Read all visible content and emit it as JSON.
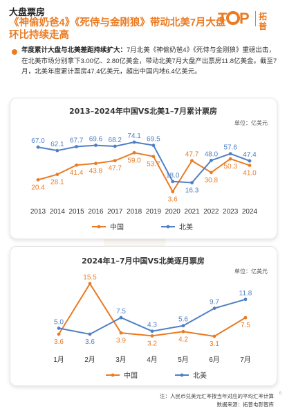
{
  "header": {
    "section_label": "大盘票房",
    "headline": "《神偷奶爸4》《死侍与金刚狼》带动北美7月大盘环比持续走高",
    "logo_text": "T♦P",
    "logo_cn": "拓普"
  },
  "summary": {
    "lead": "年度累计大盘与北美差距持续扩大：",
    "text": "7月北美《神偷奶爸4》《死侍与金刚狼》重磅出击，在北美市场分别拿下3.00亿、2.80亿美金，带动北美7月大盘产出票房11.8亿美金。截至7月，北美年度累计票房47.4亿美元，超出中国内地6.4亿美元。"
  },
  "colors": {
    "china": "#ea7b23",
    "na": "#4f7fc4",
    "accent": "#ea7b23"
  },
  "chart_data": [
    {
      "type": "line",
      "title": "2013–2024年中国VS北美1–7月累计票房",
      "unit": "单位：亿美元",
      "categories": [
        "2013",
        "2014",
        "2015",
        "2016",
        "2017",
        "2018",
        "2019",
        "2020",
        "2021",
        "2022",
        "2023",
        "2024"
      ],
      "series": [
        {
          "name": "中国",
          "values": [
            20.4,
            28.1,
            41.4,
            43.8,
            47.7,
            59.0,
            53.7,
            3.6,
            47.7,
            30.8,
            50.3,
            41.0
          ]
        },
        {
          "name": "北美",
          "values": [
            67.0,
            62.1,
            67.7,
            69.6,
            68.2,
            74.1,
            69.5,
            18.0,
            16.3,
            48.0,
            57.6,
            47.4
          ]
        }
      ],
      "ylim": [
        0,
        85
      ],
      "legend": "bottom"
    },
    {
      "type": "line",
      "title": "2024年1–7月中国VS北美逐月票房",
      "unit": "单位：亿美元",
      "categories": [
        "1月",
        "2月",
        "3月",
        "4月",
        "5月",
        "6月",
        "7月"
      ],
      "series": [
        {
          "name": "中国",
          "values": [
            3.6,
            15.5,
            3.9,
            3.2,
            4.2,
            3.1,
            7.5
          ]
        },
        {
          "name": "北美",
          "values": [
            5.0,
            3.6,
            7.5,
            4.3,
            5.6,
            9.7,
            11.8
          ]
        }
      ],
      "ylim": [
        0,
        17
      ],
      "legend": "bottom"
    }
  ],
  "footnote": {
    "note": "注：人民币兑美元汇率按当年对应的平均汇率计算",
    "source": "数据来源：拓普电影智库"
  },
  "page_number": "6"
}
